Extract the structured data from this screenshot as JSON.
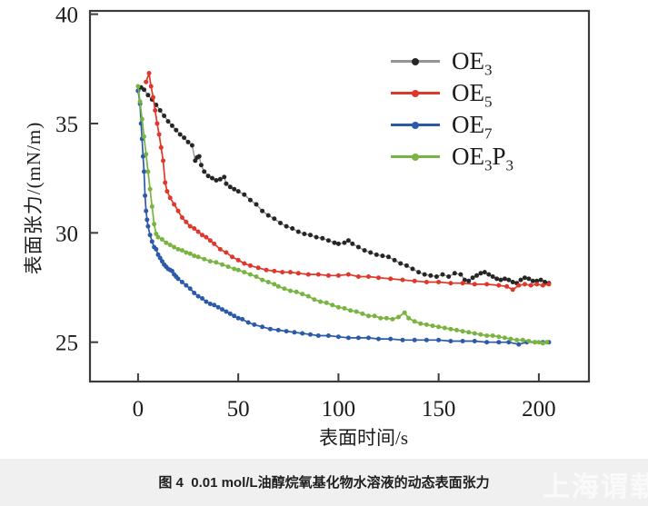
{
  "figure": {
    "caption": "图 4  0.01 mol/L油醇烷氧基化物水溶液的动态表面张力",
    "watermark": "上海谓载"
  },
  "chart_data": {
    "type": "line",
    "title": "",
    "xlabel": "表面时间/s",
    "ylabel": "表面张力/(mN/m)",
    "xlim": [
      -24,
      225
    ],
    "ylim": [
      23.2,
      40.15
    ],
    "xticks": [
      0,
      50,
      100,
      150,
      200
    ],
    "yticks": [
      25,
      30,
      35,
      40
    ],
    "grid": false,
    "legend_position": "upper-right-inside",
    "frame_color": "#3b3b3b",
    "tick_label_color": "#1c1c1c",
    "series": [
      {
        "id": "OE3",
        "label_parts": [
          {
            "t": "OE"
          },
          {
            "s": "3"
          }
        ],
        "line_color": "#949494",
        "marker_color": "#262626",
        "points": [
          [
            0,
            36.5
          ],
          [
            1.5,
            36.65
          ],
          [
            3,
            36.55
          ],
          [
            5,
            36.3
          ],
          [
            7,
            36.1
          ],
          [
            9,
            35.85
          ],
          [
            11,
            35.6
          ],
          [
            13,
            35.35
          ],
          [
            15,
            35.1
          ],
          [
            17,
            34.9
          ],
          [
            19,
            34.7
          ],
          [
            21,
            34.5
          ],
          [
            23,
            34.35
          ],
          [
            25,
            34.15
          ],
          [
            27,
            34.0
          ],
          [
            28.5,
            33.3
          ],
          [
            29.5,
            33.45
          ],
          [
            30.5,
            33.5
          ],
          [
            31.5,
            33.1
          ],
          [
            33,
            32.8
          ],
          [
            35,
            32.6
          ],
          [
            37,
            32.5
          ],
          [
            39,
            32.4
          ],
          [
            41,
            32.45
          ],
          [
            43,
            32.55
          ],
          [
            44,
            32.25
          ],
          [
            46,
            32.1
          ],
          [
            48,
            32.0
          ],
          [
            50,
            31.9
          ],
          [
            53,
            31.75
          ],
          [
            56,
            31.5
          ],
          [
            59,
            31.3
          ],
          [
            62,
            31.0
          ],
          [
            65,
            30.8
          ],
          [
            68,
            30.65
          ],
          [
            71,
            30.45
          ],
          [
            74,
            30.3
          ],
          [
            77,
            30.2
          ],
          [
            80,
            30.05
          ],
          [
            83,
            29.95
          ],
          [
            86,
            29.9
          ],
          [
            89,
            29.8
          ],
          [
            92,
            29.75
          ],
          [
            95,
            29.65
          ],
          [
            98,
            29.55
          ],
          [
            100,
            29.5
          ],
          [
            103,
            29.55
          ],
          [
            105,
            29.65
          ],
          [
            107,
            29.5
          ],
          [
            110,
            29.35
          ],
          [
            113,
            29.2
          ],
          [
            116,
            29.1
          ],
          [
            119,
            29.0
          ],
          [
            122,
            28.95
          ],
          [
            125,
            28.9
          ],
          [
            128,
            28.75
          ],
          [
            131,
            28.6
          ],
          [
            134,
            28.5
          ],
          [
            137,
            28.35
          ],
          [
            140,
            28.2
          ],
          [
            143,
            28.1
          ],
          [
            146,
            28.05
          ],
          [
            149,
            28.0
          ],
          [
            152,
            28.1
          ],
          [
            155,
            28.0
          ],
          [
            158,
            28.15
          ],
          [
            161,
            28.1
          ],
          [
            163,
            27.85
          ],
          [
            165,
            27.8
          ],
          [
            167,
            27.95
          ],
          [
            169,
            28.05
          ],
          [
            171,
            28.15
          ],
          [
            173,
            28.2
          ],
          [
            175,
            28.1
          ],
          [
            177,
            28.0
          ],
          [
            179,
            27.9
          ],
          [
            181,
            27.85
          ],
          [
            183,
            27.9
          ],
          [
            185,
            27.85
          ],
          [
            187,
            27.75
          ],
          [
            189,
            27.7
          ],
          [
            191,
            27.85
          ],
          [
            193,
            27.95
          ],
          [
            195,
            27.9
          ],
          [
            197,
            27.8
          ],
          [
            199,
            27.8
          ],
          [
            201,
            27.85
          ],
          [
            203,
            27.75
          ],
          [
            205,
            27.7
          ]
        ]
      },
      {
        "id": "OE5",
        "label_parts": [
          {
            "t": "OE"
          },
          {
            "s": "5"
          }
        ],
        "line_color": "#df382a",
        "marker_color": "#df382a",
        "points": [
          [
            4,
            36.9
          ],
          [
            5.5,
            37.3
          ],
          [
            6.5,
            36.7
          ],
          [
            7.5,
            36.2
          ],
          [
            8.5,
            35.6
          ],
          [
            9.5,
            35.0
          ],
          [
            10.5,
            34.5
          ],
          [
            11.5,
            33.9
          ],
          [
            12.5,
            33.3
          ],
          [
            13.5,
            32.3
          ],
          [
            14.5,
            31.9
          ],
          [
            16,
            31.6
          ],
          [
            18,
            31.3
          ],
          [
            20,
            31.0
          ],
          [
            22,
            30.7
          ],
          [
            24,
            30.5
          ],
          [
            26,
            30.3
          ],
          [
            28,
            30.2
          ],
          [
            30,
            30.05
          ],
          [
            32,
            29.9
          ],
          [
            34,
            29.8
          ],
          [
            36,
            29.65
          ],
          [
            38,
            29.5
          ],
          [
            41,
            29.25
          ],
          [
            44,
            29.1
          ],
          [
            47,
            28.9
          ],
          [
            50,
            28.75
          ],
          [
            53,
            28.6
          ],
          [
            56,
            28.5
          ],
          [
            60,
            28.4
          ],
          [
            64,
            28.3
          ],
          [
            68,
            28.25
          ],
          [
            72,
            28.2
          ],
          [
            76,
            28.2
          ],
          [
            80,
            28.15
          ],
          [
            85,
            28.1
          ],
          [
            90,
            28.1
          ],
          [
            95,
            28.05
          ],
          [
            100,
            28.05
          ],
          [
            105,
            28.1
          ],
          [
            110,
            28.0
          ],
          [
            115,
            28.0
          ],
          [
            120,
            27.95
          ],
          [
            126,
            27.9
          ],
          [
            132,
            27.85
          ],
          [
            138,
            27.8
          ],
          [
            144,
            27.75
          ],
          [
            150,
            27.75
          ],
          [
            156,
            27.7
          ],
          [
            162,
            27.7
          ],
          [
            168,
            27.65
          ],
          [
            174,
            27.65
          ],
          [
            180,
            27.6
          ],
          [
            184,
            27.55
          ],
          [
            187,
            27.4
          ],
          [
            190,
            27.6
          ],
          [
            193,
            27.65
          ],
          [
            196,
            27.6
          ],
          [
            199,
            27.65
          ],
          [
            202,
            27.6
          ],
          [
            205,
            27.65
          ]
        ]
      },
      {
        "id": "OE7",
        "label_parts": [
          {
            "t": "OE"
          },
          {
            "s": "7"
          }
        ],
        "line_color": "#2b5aa9",
        "marker_color": "#2b5aa9",
        "points": [
          [
            0,
            36.5
          ],
          [
            1,
            35.9
          ],
          [
            1.5,
            35.0
          ],
          [
            2,
            34.3
          ],
          [
            2.5,
            33.5
          ],
          [
            3,
            32.8
          ],
          [
            3.5,
            31.7
          ],
          [
            4,
            31.0
          ],
          [
            4.5,
            30.6
          ],
          [
            5,
            30.3
          ],
          [
            6,
            29.9
          ],
          [
            7,
            29.6
          ],
          [
            8,
            29.35
          ],
          [
            9,
            29.25
          ],
          [
            10,
            29.0
          ],
          [
            11,
            28.85
          ],
          [
            12,
            28.7
          ],
          [
            13,
            28.55
          ],
          [
            14,
            28.45
          ],
          [
            15,
            28.35
          ],
          [
            16,
            28.3
          ],
          [
            17,
            28.25
          ],
          [
            18,
            28.1
          ],
          [
            19,
            28.0
          ],
          [
            20,
            27.9
          ],
          [
            22,
            27.75
          ],
          [
            24,
            27.6
          ],
          [
            26,
            27.45
          ],
          [
            28,
            27.25
          ],
          [
            30,
            27.1
          ],
          [
            32,
            27.0
          ],
          [
            34,
            26.85
          ],
          [
            36,
            26.75
          ],
          [
            38,
            26.7
          ],
          [
            40,
            26.6
          ],
          [
            42,
            26.5
          ],
          [
            44,
            26.4
          ],
          [
            46,
            26.3
          ],
          [
            48,
            26.2
          ],
          [
            50,
            26.1
          ],
          [
            52,
            26.05
          ],
          [
            55,
            25.9
          ],
          [
            58,
            25.8
          ],
          [
            62,
            25.7
          ],
          [
            66,
            25.6
          ],
          [
            70,
            25.55
          ],
          [
            74,
            25.5
          ],
          [
            78,
            25.45
          ],
          [
            82,
            25.4
          ],
          [
            86,
            25.35
          ],
          [
            90,
            25.3
          ],
          [
            95,
            25.3
          ],
          [
            100,
            25.25
          ],
          [
            105,
            25.2
          ],
          [
            110,
            25.2
          ],
          [
            115,
            25.2
          ],
          [
            120,
            25.15
          ],
          [
            126,
            25.15
          ],
          [
            132,
            25.1
          ],
          [
            138,
            25.1
          ],
          [
            144,
            25.1
          ],
          [
            150,
            25.1
          ],
          [
            156,
            25.05
          ],
          [
            162,
            25.05
          ],
          [
            168,
            25.05
          ],
          [
            174,
            25.0
          ],
          [
            180,
            25.0
          ],
          [
            185,
            25.0
          ],
          [
            190,
            24.9
          ],
          [
            194,
            25.0
          ],
          [
            198,
            25.0
          ],
          [
            202,
            25.0
          ],
          [
            205,
            25.0
          ]
        ]
      },
      {
        "id": "OE3P3",
        "label_parts": [
          {
            "t": "OE"
          },
          {
            "s": "3"
          },
          {
            "t": "P"
          },
          {
            "s": "3"
          }
        ],
        "line_color": "#79b440",
        "marker_color": "#79b440",
        "points": [
          [
            0,
            36.7
          ],
          [
            1,
            36.0
          ],
          [
            2,
            35.2
          ],
          [
            3,
            34.4
          ],
          [
            4,
            33.6
          ],
          [
            5,
            32.8
          ],
          [
            6,
            32.0
          ],
          [
            7,
            31.2
          ],
          [
            8,
            30.4
          ],
          [
            9,
            29.95
          ],
          [
            10,
            29.8
          ],
          [
            12,
            29.7
          ],
          [
            14,
            29.55
          ],
          [
            16,
            29.45
          ],
          [
            18,
            29.35
          ],
          [
            20,
            29.25
          ],
          [
            22,
            29.2
          ],
          [
            24,
            29.1
          ],
          [
            26,
            29.05
          ],
          [
            28,
            28.95
          ],
          [
            30,
            28.9
          ],
          [
            33,
            28.8
          ],
          [
            36,
            28.7
          ],
          [
            39,
            28.65
          ],
          [
            42,
            28.55
          ],
          [
            45,
            28.45
          ],
          [
            48,
            28.35
          ],
          [
            50,
            28.3
          ],
          [
            53,
            28.2
          ],
          [
            56,
            28.1
          ],
          [
            59,
            28.0
          ],
          [
            62,
            27.85
          ],
          [
            65,
            27.75
          ],
          [
            68,
            27.65
          ],
          [
            70,
            27.55
          ],
          [
            73,
            27.45
          ],
          [
            76,
            27.35
          ],
          [
            79,
            27.3
          ],
          [
            82,
            27.2
          ],
          [
            85,
            27.1
          ],
          [
            88,
            26.95
          ],
          [
            91,
            26.85
          ],
          [
            94,
            26.8
          ],
          [
            97,
            26.7
          ],
          [
            100,
            26.6
          ],
          [
            103,
            26.55
          ],
          [
            106,
            26.45
          ],
          [
            109,
            26.4
          ],
          [
            112,
            26.3
          ],
          [
            115,
            26.2
          ],
          [
            118,
            26.2
          ],
          [
            121,
            26.1
          ],
          [
            124,
            26.1
          ],
          [
            127,
            26.05
          ],
          [
            130,
            26.15
          ],
          [
            133,
            26.35
          ],
          [
            135,
            26.1
          ],
          [
            138,
            25.95
          ],
          [
            141,
            25.85
          ],
          [
            144,
            25.8
          ],
          [
            147,
            25.75
          ],
          [
            150,
            25.7
          ],
          [
            153,
            25.65
          ],
          [
            156,
            25.6
          ],
          [
            159,
            25.55
          ],
          [
            162,
            25.5
          ],
          [
            165,
            25.45
          ],
          [
            168,
            25.4
          ],
          [
            171,
            25.35
          ],
          [
            174,
            25.3
          ],
          [
            177,
            25.3
          ],
          [
            180,
            25.25
          ],
          [
            183,
            25.2
          ],
          [
            186,
            25.15
          ],
          [
            189,
            25.1
          ],
          [
            192,
            25.1
          ],
          [
            195,
            25.05
          ],
          [
            198,
            25.0
          ],
          [
            200,
            25.0
          ],
          [
            202,
            24.95
          ],
          [
            204,
            25.0
          ]
        ]
      }
    ]
  }
}
